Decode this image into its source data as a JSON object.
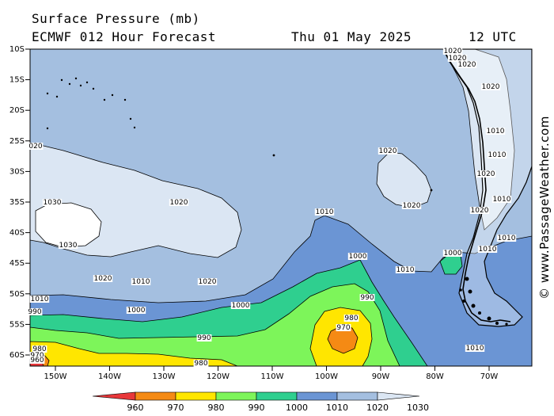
{
  "header": {
    "title": "Surface Pressure (mb)",
    "subtitle": "ECMWF 012 Hour Forecast",
    "date": "Thu 01 May 2025",
    "time": "12 UTC"
  },
  "watermark": "© www.PassageWeather.com",
  "lat_labels": [
    "10S",
    "15S",
    "20S",
    "25S",
    "30S",
    "35S",
    "40S",
    "45S",
    "50S",
    "55S",
    "60S"
  ],
  "lon_labels": [
    "150W",
    "140W",
    "130W",
    "120W",
    "110W",
    "100W",
    "90W",
    "80W",
    "70W"
  ],
  "legend": {
    "levels": [
      "960",
      "970",
      "980",
      "990",
      "1000",
      "1010",
      "1020",
      "1030"
    ],
    "colors": [
      "#e8373a",
      "#f58a14",
      "#ffe600",
      "#7df55a",
      "#2fcf8f",
      "#6b95d4",
      "#a4bfe0",
      "#dbe6f3"
    ]
  },
  "isobar_labels": [
    {
      "text": "1030",
      "name": "isobar-label-1030-a"
    },
    {
      "text": "1030",
      "name": "isobar-label-1030-b"
    },
    {
      "text": "1020",
      "name": "isobar-label-1020-a"
    },
    {
      "text": "1020",
      "name": "isobar-label-1020-b"
    },
    {
      "text": "1020",
      "name": "isobar-label-1020-c"
    },
    {
      "text": "020",
      "name": "isobar-label-020-edge"
    },
    {
      "text": "1020",
      "name": "isobar-label-1020-d"
    },
    {
      "text": "1020",
      "name": "isobar-label-1020-e"
    },
    {
      "text": "1010",
      "name": "isobar-label-1010-a"
    },
    {
      "text": "1010",
      "name": "isobar-label-1010-b"
    },
    {
      "text": "1010",
      "name": "isobar-label-1010-c"
    },
    {
      "text": "1010",
      "name": "isobar-label-1010-d"
    },
    {
      "text": "1010",
      "name": "isobar-label-1010-e"
    },
    {
      "text": "1000",
      "name": "isobar-label-1000-a"
    },
    {
      "text": "1000",
      "name": "isobar-label-1000-b"
    },
    {
      "text": "1000",
      "name": "isobar-label-1000-c"
    },
    {
      "text": "1000",
      "name": "isobar-label-1000-d"
    },
    {
      "text": "990",
      "name": "isobar-label-990-a"
    },
    {
      "text": "990",
      "name": "isobar-label-990-b"
    },
    {
      "text": "990",
      "name": "isobar-label-990-c"
    },
    {
      "text": "980",
      "name": "isobar-label-980-a"
    },
    {
      "text": "980",
      "name": "isobar-label-980-b"
    },
    {
      "text": "980",
      "name": "isobar-label-980-c"
    },
    {
      "text": "970",
      "name": "isobar-label-970-a"
    },
    {
      "text": "970",
      "name": "isobar-label-970-b"
    },
    {
      "text": "960",
      "name": "isobar-label-960"
    },
    {
      "text": "1020",
      "name": "isobar-label-coast-1020-a"
    },
    {
      "text": "1020",
      "name": "isobar-label-coast-1020-b"
    },
    {
      "text": "1020",
      "name": "isobar-label-coast-1020-c"
    },
    {
      "text": "1020",
      "name": "isobar-label-coast-1020-d"
    },
    {
      "text": "1010",
      "name": "isobar-label-coast-1010-a"
    },
    {
      "text": "1010",
      "name": "isobar-label-coast-1010-b"
    },
    {
      "text": "1020",
      "name": "isobar-label-coast-1020-e"
    },
    {
      "text": "1010",
      "name": "isobar-label-coast-1010-c"
    },
    {
      "text": "1020",
      "name": "isobar-label-coast-1020-f"
    },
    {
      "text": "1010",
      "name": "isobar-label-coast-1010-d"
    },
    {
      "text": "1010",
      "name": "isobar-label-coast-1010-e"
    }
  ]
}
